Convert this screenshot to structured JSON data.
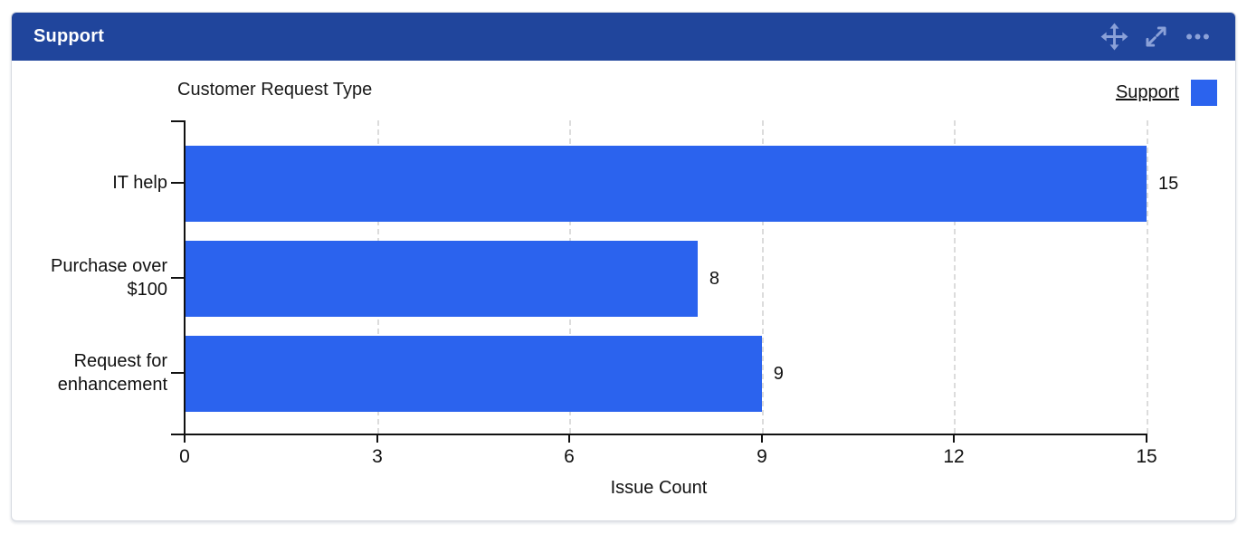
{
  "gadget": {
    "title": "Support"
  },
  "header": {
    "title": "Support",
    "icons": [
      "move-icon",
      "expand-icon",
      "more-options-icon"
    ]
  },
  "colors": {
    "header_bg": "#20459c",
    "header_text": "#ffffff",
    "header_icon": "#8ba1d8",
    "bar": "#2b63ee",
    "gridline": "#dcdcdc",
    "axis": "#111111",
    "card_border": "#d6dae1"
  },
  "legend": {
    "items": [
      {
        "label": "Support",
        "color": "#2b63ee"
      }
    ]
  },
  "chart_data": {
    "type": "bar",
    "orientation": "horizontal",
    "title": "Customer Request Type",
    "categories": [
      "IT help",
      "Purchase over $100",
      "Request for enhancement"
    ],
    "values": [
      15,
      8,
      9
    ],
    "bar_value_labels": [
      "15",
      "8",
      "9"
    ],
    "series": [
      {
        "name": "Support",
        "values": [
          15,
          8,
          9
        ]
      }
    ],
    "xlabel": "Issue Count",
    "ylabel": "",
    "xlim": [
      0,
      15
    ],
    "xticks": [
      0,
      3,
      6,
      9,
      12,
      15
    ],
    "grid": "vertical-dashed",
    "legend_position": "top-right",
    "bar_color": "#2b63ee"
  }
}
